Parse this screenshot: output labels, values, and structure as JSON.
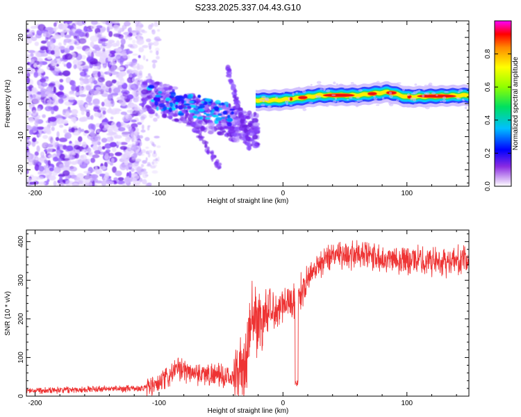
{
  "title": "S233.2025.337.04.43.G10",
  "chart_data": [
    {
      "type": "heatmap",
      "xlabel": "Height of straight line (km)",
      "ylabel": "Frequency (Hz)",
      "xlim": [
        -207,
        150
      ],
      "ylim": [
        -25,
        25
      ],
      "xticks": [
        -200,
        -100,
        0,
        100
      ],
      "yticks": [
        -20,
        -10,
        0,
        10,
        20
      ],
      "colorbar": {
        "label": "Normalized spectral amplitude",
        "range": [
          0,
          1
        ],
        "ticks": [
          "0.0",
          "0.2",
          "0.4",
          "0.6",
          "0.8"
        ]
      },
      "features": {
        "background_noise_until_km": -115,
        "diffuse_band_km": [
          -115,
          -20
        ],
        "tone_center_hz": 2,
        "tone_track": [
          {
            "x": -5,
            "f": 1
          },
          {
            "x": 10,
            "f": 1.5
          },
          {
            "x": 30,
            "f": 2.5
          },
          {
            "x": 60,
            "f": 2.5
          },
          {
            "x": 85,
            "f": 3.5
          },
          {
            "x": 100,
            "f": 2
          },
          {
            "x": 150,
            "f": 2.5
          }
        ]
      }
    },
    {
      "type": "line",
      "xlabel": "Height of straight line (km)",
      "ylabel": "SNR (10 * v/v)",
      "xlim": [
        -207,
        150
      ],
      "ylim": [
        0,
        430
      ],
      "xticks": [
        -200,
        -100,
        0,
        100
      ],
      "yticks": [
        0,
        100,
        200,
        300,
        400
      ],
      "color": "#ee3333",
      "trend": [
        {
          "x": -207,
          "y": 15
        },
        {
          "x": -115,
          "y": 20
        },
        {
          "x": -100,
          "y": 30
        },
        {
          "x": -85,
          "y": 70
        },
        {
          "x": -70,
          "y": 60
        },
        {
          "x": -55,
          "y": 55
        },
        {
          "x": -40,
          "y": 45
        },
        {
          "x": -30,
          "y": 80
        },
        {
          "x": -25,
          "y": 200
        },
        {
          "x": -15,
          "y": 200
        },
        {
          "x": -5,
          "y": 230
        },
        {
          "x": 5,
          "y": 250
        },
        {
          "x": 10,
          "y": 240
        },
        {
          "x": 15,
          "y": 270
        },
        {
          "x": 25,
          "y": 330
        },
        {
          "x": 40,
          "y": 370
        },
        {
          "x": 80,
          "y": 360
        },
        {
          "x": 110,
          "y": 350
        },
        {
          "x": 150,
          "y": 350
        }
      ],
      "dip": {
        "x": 11,
        "y": 25
      }
    }
  ]
}
